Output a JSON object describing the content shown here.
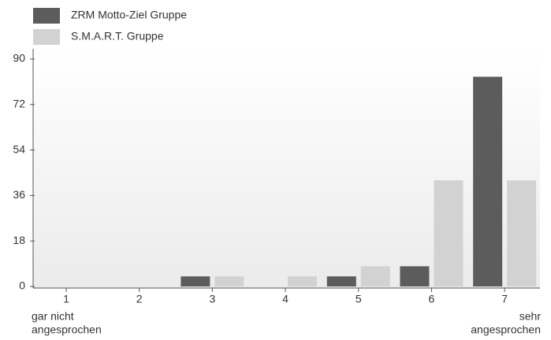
{
  "chart_data": {
    "type": "bar",
    "categories": [
      "1",
      "2",
      "3",
      "4",
      "5",
      "6",
      "7"
    ],
    "series": [
      {
        "name": "ZRM Motto-Ziel Gruppe",
        "color": "#5c5c5c",
        "values": [
          0,
          0,
          4,
          0,
          4,
          8,
          83
        ]
      },
      {
        "name": "S.M.A.R.T. Gruppe",
        "color": "#d2d2d2",
        "values": [
          0,
          0,
          4,
          4,
          8,
          42,
          42
        ]
      }
    ],
    "ylim": [
      0,
      90
    ],
    "yticks": [
      0,
      18,
      36,
      54,
      72,
      90
    ],
    "grid": false,
    "legend": "top-left",
    "x_annotations": [
      [
        "gar nicht",
        "angesprochen"
      ],
      [
        "sehr",
        "angesprochen"
      ]
    ]
  }
}
